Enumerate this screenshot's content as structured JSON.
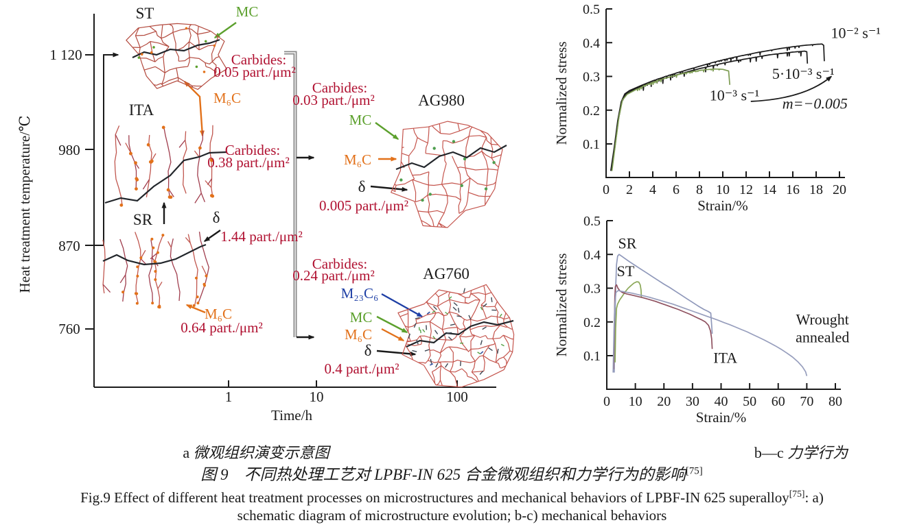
{
  "colors": {
    "black": "#1a1a1a",
    "red": "#b01030",
    "green": "#5ca02d",
    "orange": "#e2711a",
    "blue": "#1e3fa5",
    "gray_bracket": "#8a8a8a",
    "boundary_red": "#b34a3e",
    "boundary_pink": "#c4544c",
    "chart_green": "#7d9c52",
    "curve_sr": "#8f98ba",
    "curve_st": "#8ba757",
    "curve_ita": "#8f5260",
    "curve_wrought": "#979ebd"
  },
  "panelA": {
    "y_title": "Heat treatment temperature/℃",
    "x_title": "Time/h",
    "y_ticks": [
      "1 120",
      "980",
      "870",
      "760"
    ],
    "x_ticks": [
      "1",
      "10",
      "100"
    ],
    "labels": {
      "st": "ST",
      "ita": "ITA",
      "sr": "SR",
      "ag980": "AG980",
      "ag760": "AG760"
    },
    "ann": {
      "st_mc": "MC",
      "st_carbides": "Carbides:",
      "st_density": "0.05 part./μm²",
      "st_m6c": "M₆C",
      "ita_carbides": "Carbides:",
      "ita_density": "0.38 part./μm²",
      "sr_delta": "δ",
      "sr_delta_density": "1.44 part./μm²",
      "sr_m6c": "M₆C",
      "sr_m6c_density": "0.64 part./μm²",
      "mid_top_carbides": "Carbides:",
      "mid_top_density": "0.03 part./μm²",
      "ag980_mc": "MC",
      "ag980_m6c": "M₆C",
      "ag980_delta": "δ",
      "ag980_delta_density": "0.005 part./μm²",
      "mid_bot_carbides": "Carbides:",
      "mid_bot_density": "0.24 part./μm²",
      "ag760_m23c6": "M₂₃C₆",
      "ag760_mc": "MC",
      "ag760_m6c": "M₆C",
      "ag760_delta": "δ",
      "ag760_delta_density": "0.4 part./μm²"
    }
  },
  "chart_data": [
    {
      "type": "line",
      "title": "",
      "xlabel": "Strain/%",
      "ylabel": "Normalized stress",
      "xlim": [
        0,
        20
      ],
      "ylim": [
        0,
        0.5
      ],
      "grid": false,
      "legend_position": "none",
      "xticks": [
        "0",
        "2",
        "4",
        "6",
        "8",
        "10",
        "12",
        "14",
        "16",
        "18",
        "20"
      ],
      "yticks": [
        "0.1",
        "0.2",
        "0.3",
        "0.4",
        "0.5"
      ],
      "series": [
        {
          "name": "10⁻² s⁻¹",
          "color": "black",
          "serr": [
            4,
            18.3,
            0.006
          ],
          "points": [
            [
              0.4,
              0.02
            ],
            [
              0.7,
              0.09
            ],
            [
              1.0,
              0.17
            ],
            [
              1.3,
              0.225
            ],
            [
              1.6,
              0.248
            ],
            [
              2,
              0.258
            ],
            [
              3,
              0.273
            ],
            [
              4,
              0.287
            ],
            [
              5,
              0.299
            ],
            [
              6,
              0.31
            ],
            [
              7,
              0.32
            ],
            [
              8,
              0.33
            ],
            [
              9,
              0.34
            ],
            [
              10,
              0.349
            ],
            [
              11,
              0.357
            ],
            [
              12,
              0.364
            ],
            [
              13,
              0.371
            ],
            [
              14,
              0.377
            ],
            [
              15,
              0.383
            ],
            [
              16,
              0.388
            ],
            [
              17,
              0.392
            ],
            [
              18,
              0.395
            ],
            [
              18.5,
              0.396
            ],
            [
              18.65,
              0.392
            ],
            [
              18.7,
              0.345
            ]
          ]
        },
        {
          "name": "5·10⁻³ s⁻¹",
          "color": "black",
          "serr": [
            3,
            17.0,
            0.009
          ],
          "points": [
            [
              0.45,
              0.02
            ],
            [
              0.75,
              0.09
            ],
            [
              1.05,
              0.17
            ],
            [
              1.35,
              0.225
            ],
            [
              1.7,
              0.247
            ],
            [
              2.2,
              0.258
            ],
            [
              3,
              0.27
            ],
            [
              4,
              0.283
            ],
            [
              5,
              0.294
            ],
            [
              6,
              0.304
            ],
            [
              7,
              0.314
            ],
            [
              8,
              0.323
            ],
            [
              9,
              0.331
            ],
            [
              10,
              0.339
            ],
            [
              11,
              0.346
            ],
            [
              12,
              0.352
            ],
            [
              13,
              0.358
            ],
            [
              14,
              0.364
            ],
            [
              15,
              0.368
            ],
            [
              16,
              0.372
            ],
            [
              17,
              0.375
            ],
            [
              17.2,
              0.373
            ],
            [
              17.25,
              0.338
            ]
          ]
        },
        {
          "name": "10⁻³ s⁻¹",
          "color": "chart_green",
          "serr": [
            2.5,
            10.2,
            0.005
          ],
          "points": [
            [
              0.5,
              0.02
            ],
            [
              0.8,
              0.1
            ],
            [
              1.1,
              0.18
            ],
            [
              1.4,
              0.23
            ],
            [
              1.8,
              0.247
            ],
            [
              2.5,
              0.26
            ],
            [
              3.5,
              0.276
            ],
            [
              4.5,
              0.289
            ],
            [
              5.5,
              0.299
            ],
            [
              6.5,
              0.308
            ],
            [
              7.5,
              0.315
            ],
            [
              8.5,
              0.32
            ],
            [
              9.3,
              0.322
            ],
            [
              10,
              0.321
            ],
            [
              10.5,
              0.316
            ],
            [
              10.6,
              0.275
            ]
          ]
        }
      ],
      "annotations": [
        {
          "text": "10⁻² s⁻¹",
          "x": 21.4,
          "y": 0.428,
          "color": "black"
        },
        {
          "text": "5·10⁻³ s⁻¹",
          "x": 16.9,
          "y": 0.307,
          "color": "black"
        },
        {
          "text": "10⁻³ s⁻¹",
          "x": 11.0,
          "y": 0.243,
          "color": "black"
        },
        {
          "text": "m=−0.005",
          "x": 17.9,
          "y": 0.219,
          "color": "black",
          "italic": true
        }
      ],
      "arrows": [
        {
          "from": [
            12.4,
            0.226
          ],
          "to": [
            19.3,
            0.3
          ],
          "ctrl": [
            17,
            0.233
          ]
        }
      ]
    },
    {
      "type": "line",
      "title": "",
      "xlabel": "Strain/%",
      "ylabel": "Normalized stress",
      "xlim": [
        0,
        80
      ],
      "ylim": [
        0,
        0.5
      ],
      "grid": false,
      "legend_position": "none",
      "xticks": [
        "0",
        "10",
        "20",
        "30",
        "40",
        "50",
        "60",
        "70",
        "80"
      ],
      "yticks": [
        "0.1",
        "0.2",
        "0.3",
        "0.4",
        "0.5"
      ],
      "series": [
        {
          "name": "SR",
          "color": "curve_sr",
          "points": [
            [
              2.6,
              0.05
            ],
            [
              2.8,
              0.18
            ],
            [
              3.1,
              0.3
            ],
            [
              3.4,
              0.37
            ],
            [
              3.8,
              0.395
            ],
            [
              4.3,
              0.4
            ],
            [
              5,
              0.396
            ],
            [
              6,
              0.39
            ],
            [
              8,
              0.378
            ],
            [
              10,
              0.367
            ],
            [
              12,
              0.356
            ],
            [
              14,
              0.345
            ],
            [
              16,
              0.334
            ],
            [
              18,
              0.323
            ],
            [
              20,
              0.312
            ],
            [
              22,
              0.302
            ],
            [
              24,
              0.291
            ],
            [
              26,
              0.28
            ],
            [
              28,
              0.269
            ],
            [
              30,
              0.258
            ],
            [
              32,
              0.247
            ],
            [
              34,
              0.237
            ],
            [
              35.5,
              0.231
            ],
            [
              36.4,
              0.226
            ],
            [
              36.7,
              0.19
            ],
            [
              36.9,
              0.165
            ]
          ]
        },
        {
          "name": "ST",
          "color": "curve_st",
          "points": [
            [
              2.9,
              0.08
            ],
            [
              3.1,
              0.18
            ],
            [
              3.4,
              0.24
            ],
            [
              3.8,
              0.253
            ],
            [
              4.5,
              0.265
            ],
            [
              5.5,
              0.277
            ],
            [
              6.5,
              0.29
            ],
            [
              7.5,
              0.3
            ],
            [
              8.5,
              0.308
            ],
            [
              9.5,
              0.315
            ],
            [
              10.5,
              0.319
            ],
            [
              11.2,
              0.318
            ],
            [
              11.7,
              0.31
            ],
            [
              12,
              0.295
            ],
            [
              12.1,
              0.272
            ]
          ]
        },
        {
          "name": "ITA",
          "color": "curve_ita",
          "points": [
            [
              2.4,
              0.06
            ],
            [
              2.6,
              0.18
            ],
            [
              2.8,
              0.27
            ],
            [
              3.0,
              0.305
            ],
            [
              3.4,
              0.31
            ],
            [
              3.9,
              0.3
            ],
            [
              4.6,
              0.292
            ],
            [
              5.5,
              0.287
            ],
            [
              7,
              0.283
            ],
            [
              9,
              0.279
            ],
            [
              11,
              0.275
            ],
            [
              13,
              0.271
            ],
            [
              15,
              0.266
            ],
            [
              17,
              0.261
            ],
            [
              19,
              0.255
            ],
            [
              21,
              0.249
            ],
            [
              23,
              0.243
            ],
            [
              25,
              0.237
            ],
            [
              27,
              0.23
            ],
            [
              29,
              0.223
            ],
            [
              31,
              0.215
            ],
            [
              33,
              0.207
            ],
            [
              34.5,
              0.2
            ],
            [
              35.6,
              0.19
            ],
            [
              36.3,
              0.173
            ],
            [
              36.7,
              0.15
            ],
            [
              36.9,
              0.12
            ]
          ]
        },
        {
          "name": "Wrought annealed",
          "color": "curve_wrought",
          "points": [
            [
              2.2,
              0.05
            ],
            [
              2.5,
              0.17
            ],
            [
              2.8,
              0.25
            ],
            [
              3.2,
              0.287
            ],
            [
              4,
              0.293
            ],
            [
              5,
              0.291
            ],
            [
              7,
              0.288
            ],
            [
              9,
              0.285
            ],
            [
              11,
              0.281
            ],
            [
              13,
              0.277
            ],
            [
              15,
              0.273
            ],
            [
              17,
              0.268
            ],
            [
              19,
              0.263
            ],
            [
              21,
              0.258
            ],
            [
              23,
              0.253
            ],
            [
              25,
              0.247
            ],
            [
              27,
              0.241
            ],
            [
              29,
              0.235
            ],
            [
              31,
              0.229
            ],
            [
              33,
              0.223
            ],
            [
              35,
              0.217
            ],
            [
              37,
              0.211
            ],
            [
              39,
              0.205
            ],
            [
              41,
              0.198
            ],
            [
              43,
              0.192
            ],
            [
              45,
              0.185
            ],
            [
              47,
              0.178
            ],
            [
              49,
              0.171
            ],
            [
              51,
              0.163
            ],
            [
              53,
              0.155
            ],
            [
              55,
              0.147
            ],
            [
              57,
              0.138
            ],
            [
              59,
              0.129
            ],
            [
              61,
              0.119
            ],
            [
              63,
              0.108
            ],
            [
              65,
              0.096
            ],
            [
              67,
              0.081
            ],
            [
              68.5,
              0.067
            ],
            [
              69.6,
              0.052
            ],
            [
              70,
              0.04
            ]
          ]
        }
      ],
      "annotations": [
        {
          "text": "SR",
          "x": 7.2,
          "y": 0.432,
          "color": "black"
        },
        {
          "text": "ST",
          "x": 6.6,
          "y": 0.35,
          "color": "black"
        },
        {
          "text": "ITA",
          "x": 41.5,
          "y": 0.093,
          "color": "black"
        },
        {
          "lines": [
            "Wrought",
            "annealed"
          ],
          "x": 75.5,
          "y": 0.207,
          "color": "black"
        }
      ],
      "arrows": []
    }
  ],
  "captions": {
    "a_prefix": "a",
    "a_text": "微观组织演变示意图",
    "bc_prefix": "b—c",
    "bc_text": "力学行为",
    "zh_text": "图 9　不同热处理工艺对 LPBF-IN 625 合金微观组织和力学行为的影响",
    "zh_ref": "[75]",
    "en_line1": "Fig.9 Effect of different heat treatment processes on microstructures and mechanical behaviors of LPBF-IN 625 superalloy",
    "en_ref": "[75]",
    "en_line1_tail": ": a)",
    "en_line2": "schematic diagram of microstructure evolution; b-c) mechanical behaviors"
  }
}
